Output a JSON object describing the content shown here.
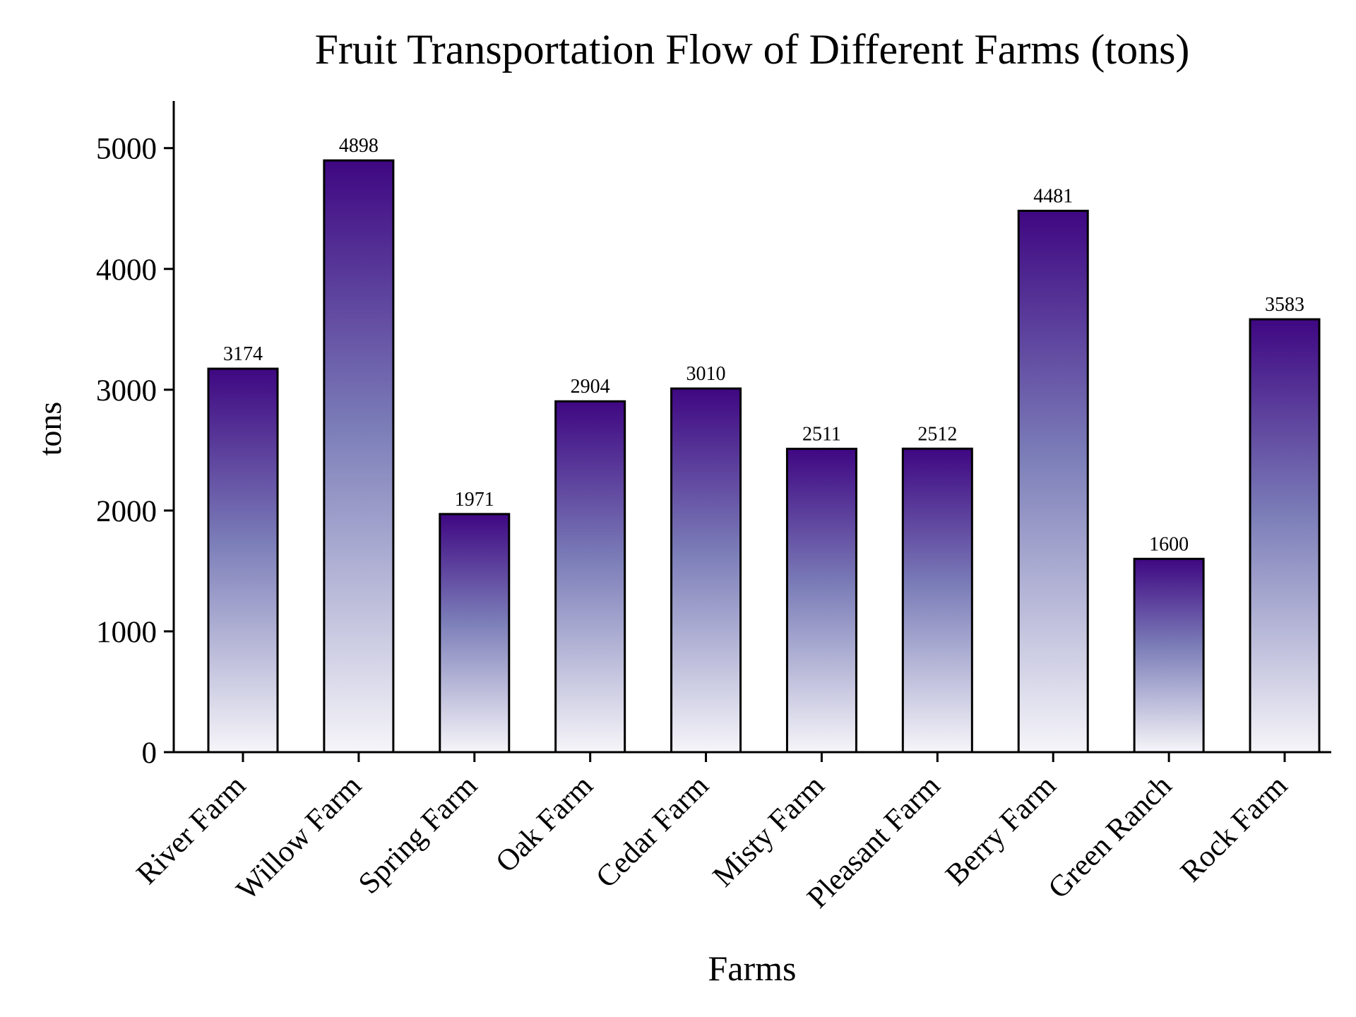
{
  "chart_data": {
    "type": "bar",
    "title": "Fruit Transportation Flow of Different Farms (tons)",
    "xlabel": "Farms",
    "ylabel": "tons",
    "categories": [
      "River Farm",
      "Willow Farm",
      "Spring Farm",
      "Oak Farm",
      "Cedar Farm",
      "Misty Farm",
      "Pleasant Farm",
      "Berry Farm",
      "Green Ranch",
      "Rock Farm"
    ],
    "values": [
      3174,
      4898,
      1971,
      2904,
      3010,
      2511,
      2512,
      4481,
      1600,
      3583
    ],
    "data_labels": [
      "3174",
      "4898",
      "1971",
      "2904",
      "3010",
      "2511",
      "2512",
      "4481",
      "1600",
      "3583"
    ],
    "ylim": [
      0,
      5390
    ],
    "yticks": [
      0,
      1000,
      2000,
      3000,
      4000,
      5000
    ],
    "ytick_labels": [
      "0",
      "1000",
      "2000",
      "3000",
      "4000",
      "5000"
    ],
    "grid": false,
    "legend": "none",
    "colors": {
      "bar_top": "#3f0782",
      "bar_mid": "#7b7db8",
      "bar_bottom": "#f6f5f9",
      "bar_edge": "#000000",
      "axis": "#000000"
    }
  }
}
